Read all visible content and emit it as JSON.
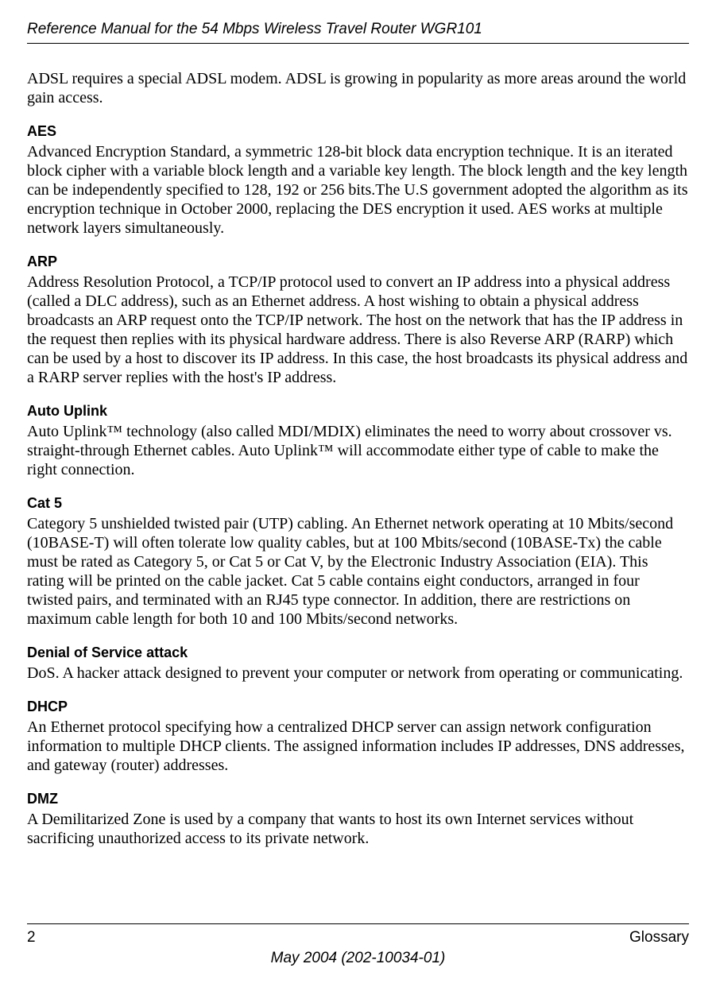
{
  "header": {
    "title": "Reference Manual for the 54 Mbps Wireless Travel Router WGR101"
  },
  "intro": "ADSL requires a special ADSL modem. ADSL is growing in popularity as more areas around the world gain access.",
  "entries": [
    {
      "term": "AES",
      "def": "Advanced Encryption Standard, a symmetric 128-bit block data encryption technique.\nIt is an iterated block cipher with a variable block length and a variable key length. The block length and the key length can be independently specified to 128, 192 or 256 bits.The U.S government adopted the algorithm as its encryption technique in October 2000, replacing the DES encryption it used. AES works at multiple network layers simultaneously."
    },
    {
      "term": "ARP",
      "def": "Address Resolution Protocol, a TCP/IP protocol used to convert an IP address into a physical address (called a DLC address), such as an Ethernet address.\nA host wishing to obtain a physical address broadcasts an ARP request onto the TCP/IP network. The host on the network that has the IP address in the request then replies with its physical hardware address. There is also Reverse ARP (RARP) which can be used by a host to discover its IP address. In this case, the host broadcasts its physical address and a RARP server replies with the host's IP address."
    },
    {
      "term": "Auto Uplink",
      "def": "Auto Uplink™ technology (also called MDI/MDIX) eliminates the need to worry about crossover vs. straight-through Ethernet cables. Auto Uplink™ will accommodate either type of cable to make the right connection."
    },
    {
      "term": "Cat 5",
      "def": "Category 5 unshielded twisted pair (UTP) cabling. An Ethernet network operating at 10 Mbits/second (10BASE-T) will often tolerate low quality cables, but at 100 Mbits/second (10BASE-Tx) the cable must be rated as Category 5, or Cat 5 or Cat V, by the Electronic Industry Association (EIA).\nThis rating will be printed on the cable jacket. Cat 5 cable contains eight conductors, arranged in four twisted pairs, and terminated with an RJ45 type connector. In addition, there are restrictions on maximum cable length for both 10 and 100 Mbits/second networks."
    },
    {
      "term": "Denial of Service attack",
      "def": "DoS. A hacker attack designed to prevent your computer or network from operating or communicating."
    },
    {
      "term": "DHCP",
      "def": "An Ethernet protocol specifying how a centralized DHCP server can assign network configuration information to multiple DHCP clients. The assigned information includes IP addresses, DNS addresses, and gateway (router) addresses."
    },
    {
      "term": "DMZ",
      "def": "A Demilitarized Zone is used by a company that wants to host its own Internet services without sacrificing unauthorized access to its private network."
    }
  ],
  "footer": {
    "page": "2",
    "section": "Glossary",
    "date": "May 2004 (202-10034-01)"
  }
}
